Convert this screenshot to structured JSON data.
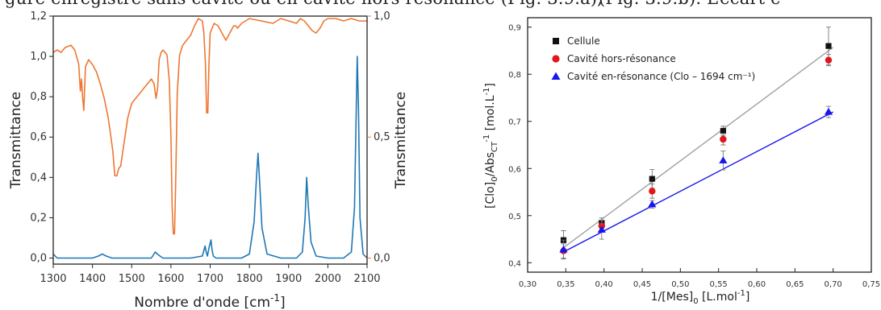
{
  "banner": {
    "left_fragment": "guré enregistré sans cavité ou en cavité hors résonance (Fig. 3.9.a),",
    "right_fragment": "(Fig. 3.9.b). L’écart e"
  },
  "colors": {
    "blue": "#1f77b4",
    "orange": "#ee7733",
    "gray": "#a0a0a0",
    "black": "#111111",
    "red": "#e3141b",
    "triangle_blue": "#1515ee"
  },
  "chart_data": [
    {
      "type": "line",
      "xlabel": "Nombre d'onde [cm",
      "xlabel_sup": "-1",
      "xlabel_close": "]",
      "ylabel_left": "Transmittance",
      "ylabel_right": "Transmittance",
      "xlim": [
        1300,
        2100
      ],
      "ylim_left": [
        -0.03,
        1.2
      ],
      "ylim_right": [
        -0.025,
        1.0
      ],
      "x_ticks": [
        "1300",
        "1400",
        "1500",
        "1600",
        "1700",
        "1800",
        "1900",
        "2000",
        "2100"
      ],
      "y_ticks_left": [
        "0,0",
        "0,2",
        "0,4",
        "0,6",
        "0,8",
        "1,0",
        "1,2"
      ],
      "y_ticks_right": [
        "0,0",
        "0,5",
        "1,0"
      ],
      "grid": false,
      "series": [
        {
          "axis": "left",
          "color": "#1f77b4",
          "x": [
            1300,
            1310,
            1320,
            1350,
            1400,
            1415,
            1425,
            1435,
            1450,
            1500,
            1550,
            1560,
            1565,
            1572,
            1580,
            1600,
            1650,
            1680,
            1687,
            1690,
            1693,
            1697,
            1702,
            1705,
            1708,
            1715,
            1740,
            1780,
            1800,
            1812,
            1818,
            1822,
            1826,
            1832,
            1845,
            1880,
            1920,
            1935,
            1942,
            1946,
            1950,
            1957,
            1970,
            2000,
            2040,
            2060,
            2068,
            2072,
            2075,
            2078,
            2082,
            2090,
            2100
          ],
          "y": [
            0.02,
            0.0,
            0.0,
            0.0,
            0.0,
            0.01,
            0.02,
            0.01,
            0.0,
            0.0,
            0.0,
            0.03,
            0.02,
            0.01,
            0.0,
            0.0,
            0.0,
            0.01,
            0.06,
            0.03,
            0.01,
            0.05,
            0.09,
            0.04,
            0.01,
            0.0,
            0.0,
            0.0,
            0.02,
            0.18,
            0.4,
            0.52,
            0.38,
            0.15,
            0.02,
            0.0,
            0.0,
            0.03,
            0.2,
            0.4,
            0.26,
            0.08,
            0.01,
            0.0,
            0.0,
            0.03,
            0.25,
            0.7,
            1.0,
            0.75,
            0.2,
            0.02,
            0.0
          ]
        },
        {
          "axis": "right",
          "color": "#ee7733",
          "x": [
            1300,
            1310,
            1320,
            1330,
            1345,
            1355,
            1365,
            1369,
            1372,
            1375,
            1378,
            1382,
            1390,
            1400,
            1410,
            1420,
            1430,
            1440,
            1447,
            1452,
            1457,
            1462,
            1467,
            1472,
            1480,
            1490,
            1500,
            1510,
            1520,
            1530,
            1540,
            1550,
            1557,
            1562,
            1566,
            1570,
            1575,
            1580,
            1590,
            1596,
            1600,
            1603,
            1606,
            1609,
            1612,
            1616,
            1622,
            1630,
            1640,
            1650,
            1660,
            1670,
            1680,
            1684,
            1688,
            1691,
            1694,
            1697,
            1700,
            1705,
            1710,
            1720,
            1730,
            1740,
            1750,
            1760,
            1765,
            1770,
            1780,
            1790,
            1800,
            1830,
            1860,
            1880,
            1900,
            1920,
            1930,
            1940,
            1950,
            1960,
            1970,
            1980,
            1990,
            2000,
            2020,
            2040,
            2060,
            2080,
            2100
          ],
          "y": [
            0.85,
            0.86,
            0.85,
            0.87,
            0.88,
            0.86,
            0.8,
            0.69,
            0.74,
            0.66,
            0.61,
            0.79,
            0.82,
            0.8,
            0.77,
            0.72,
            0.66,
            0.58,
            0.5,
            0.44,
            0.34,
            0.34,
            0.37,
            0.38,
            0.47,
            0.58,
            0.64,
            0.66,
            0.68,
            0.7,
            0.72,
            0.74,
            0.72,
            0.66,
            0.7,
            0.82,
            0.85,
            0.86,
            0.84,
            0.73,
            0.5,
            0.22,
            0.1,
            0.1,
            0.3,
            0.68,
            0.84,
            0.88,
            0.9,
            0.92,
            0.96,
            0.99,
            0.98,
            0.93,
            0.8,
            0.6,
            0.6,
            0.8,
            0.93,
            0.95,
            0.97,
            0.96,
            0.93,
            0.9,
            0.93,
            0.96,
            0.96,
            0.95,
            0.97,
            0.98,
            0.99,
            0.98,
            0.97,
            0.99,
            0.98,
            0.97,
            0.99,
            0.98,
            0.96,
            0.94,
            0.93,
            0.95,
            0.98,
            0.99,
            0.99,
            0.98,
            0.99,
            0.98,
            0.98
          ]
        }
      ]
    },
    {
      "type": "scatter",
      "xlabel": "1/[Mes]",
      "xlabel_sub": "0",
      "xlabel_tail": " [L.mol",
      "xlabel_sup": "-1",
      "xlabel_close": "]",
      "ylabel_parts": [
        "[Clo]",
        "0",
        "/Abs",
        "CT",
        "-1",
        " [mol.L",
        "-1",
        "]"
      ],
      "xlim": [
        0.3,
        0.75
      ],
      "ylim": [
        0.38,
        0.92
      ],
      "x_ticks": [
        "0,30",
        "0,35",
        "0,40",
        "0,45",
        "0,50",
        "0,55",
        "0,60",
        "0,65",
        "0,70",
        "0,75"
      ],
      "y_ticks": [
        "0,4",
        "0,5",
        "0,6",
        "0,7",
        "0,8",
        "0,9"
      ],
      "grid": false,
      "legend_position": "top-left",
      "series": [
        {
          "name": "Cellule",
          "marker": "square",
          "color": "#111111",
          "x": [
            0.347,
            0.397,
            0.463,
            0.556,
            0.694
          ],
          "y": [
            0.448,
            0.485,
            0.578,
            0.68,
            0.86
          ],
          "err": [
            0.02,
            0.01,
            0.02,
            0.01,
            0.04
          ]
        },
        {
          "name": "Cavité hors-résonance",
          "marker": "circle",
          "color": "#e3141b",
          "x": [
            0.347,
            0.397,
            0.463,
            0.556,
            0.694
          ],
          "y": [
            0.425,
            0.478,
            0.552,
            0.662,
            0.83
          ],
          "err": [
            0.015,
            0.012,
            0.015,
            0.012,
            0.012
          ]
        },
        {
          "name": "Cavité en-résonance (Clo – 1694 cm⁻¹)",
          "marker": "triangle",
          "color": "#1515ee",
          "x": [
            0.347,
            0.397,
            0.463,
            0.556,
            0.694
          ],
          "y": [
            0.428,
            0.47,
            0.524,
            0.617,
            0.72
          ],
          "err": [
            0.02,
            0.02,
            0.008,
            0.02,
            0.012
          ]
        }
      ],
      "fits": [
        {
          "color": "#a0a0a0",
          "x": [
            0.347,
            0.7
          ],
          "y": [
            0.432,
            0.857
          ]
        },
        {
          "color": "#1515ee",
          "x": [
            0.347,
            0.7
          ],
          "y": [
            0.423,
            0.72
          ]
        }
      ]
    }
  ]
}
